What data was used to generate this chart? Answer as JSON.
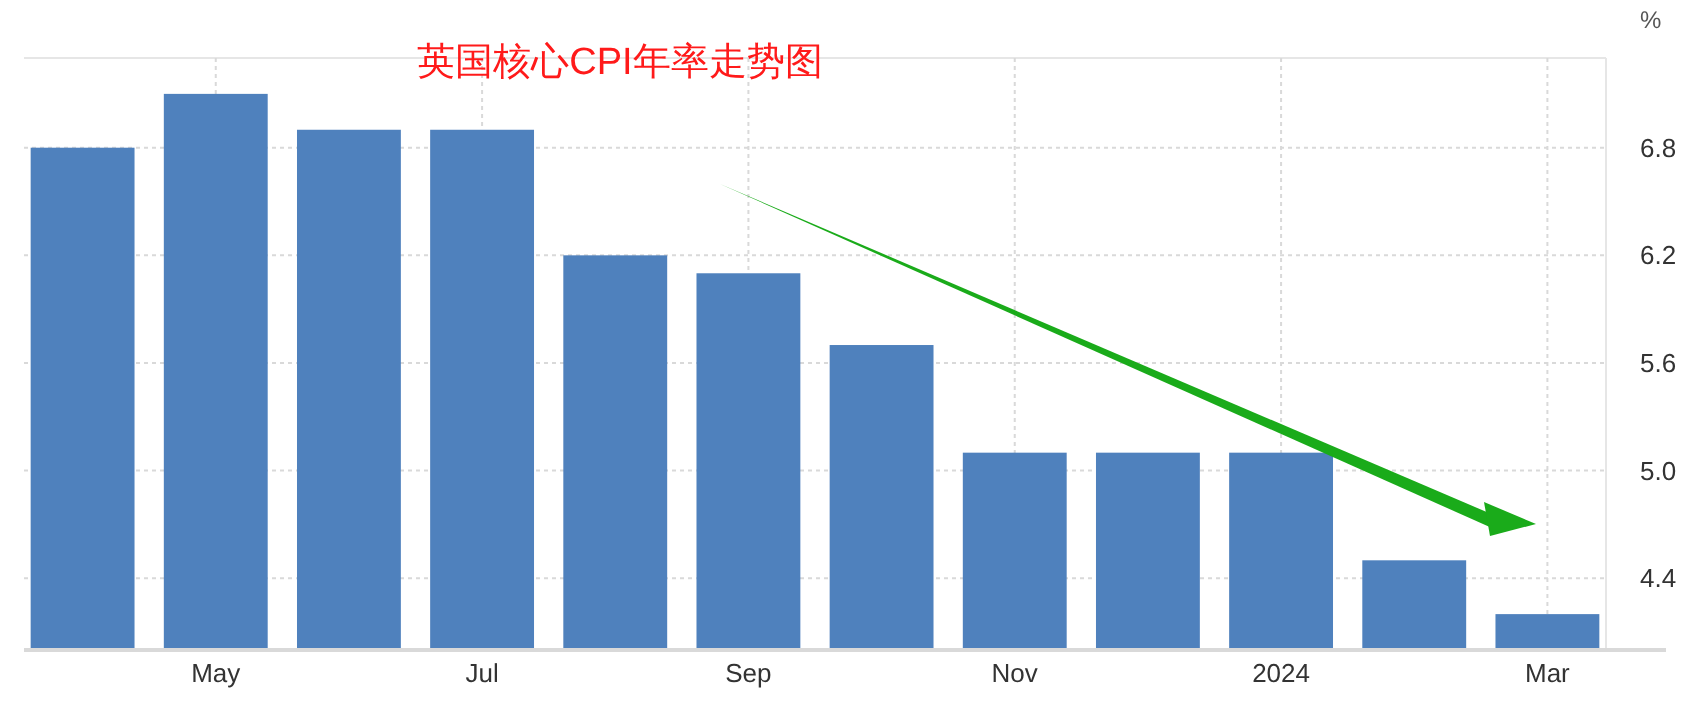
{
  "chart_data": {
    "type": "bar",
    "title": "英国核心CPI年率走势图",
    "ylabel": "%",
    "categories": [
      null,
      "May",
      null,
      "Jul",
      null,
      "Sep",
      null,
      "Nov",
      null,
      "2024",
      null,
      "Mar"
    ],
    "values": [
      6.8,
      7.1,
      6.9,
      6.9,
      6.2,
      6.1,
      5.7,
      5.1,
      5.1,
      5.1,
      4.5,
      4.2
    ],
    "color": "#4f81bd",
    "ylim": [
      4.0,
      7.3
    ],
    "yticks": [
      4.4,
      {
        "value": 5,
        "label": "5.0"
      },
      5.6,
      6.2,
      6.8
    ],
    "grid": true
  }
}
